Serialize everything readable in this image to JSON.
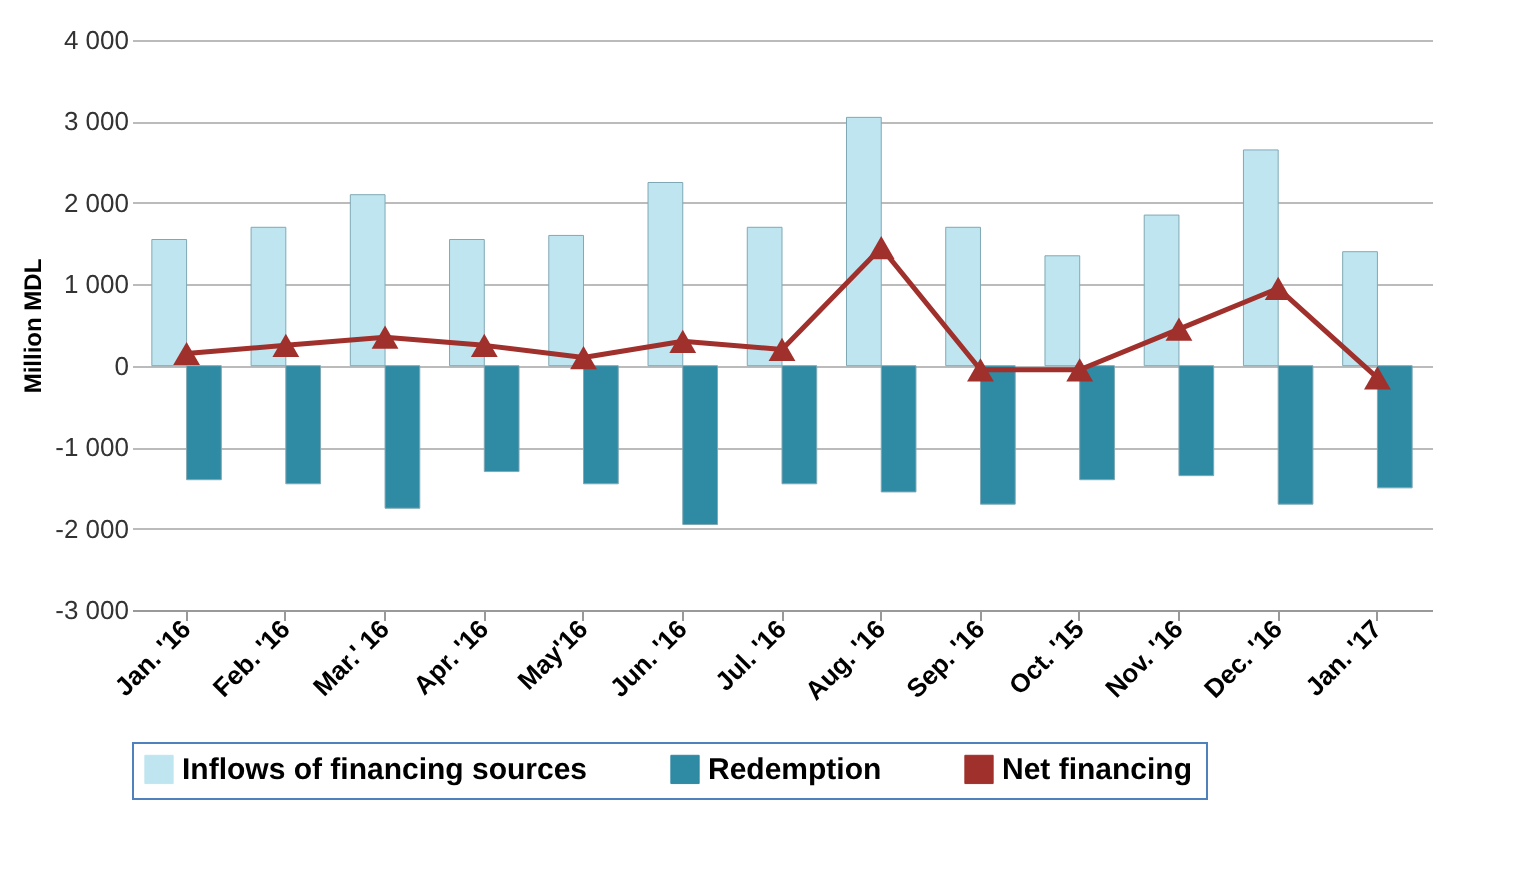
{
  "chart_data": {
    "type": "bar",
    "ylabel": "Million MDL",
    "categories": [
      "Jan. '16",
      "Feb. '16",
      "Mar.' 16",
      "Apr. '16",
      "May'16",
      "Jun. '16",
      "Jul. '16",
      "Aug. '16",
      "Sep. '16",
      "Oct. '15",
      "Nov. '16",
      "Dec. '16",
      "Jan. '17"
    ],
    "series": [
      {
        "name": "Inflows of financing sources",
        "color": "#bfe6f0",
        "values": [
          1550,
          1700,
          2100,
          1550,
          1600,
          2250,
          1700,
          3050,
          1700,
          1350,
          1850,
          2650,
          1400
        ]
      },
      {
        "name": "Redemption",
        "color": "#2f8aa3",
        "values": [
          -1400,
          -1450,
          -1750,
          -1300,
          -1450,
          -1950,
          -1450,
          -1550,
          -1700,
          -1400,
          -1350,
          -1700,
          -1500
        ]
      },
      {
        "name": "Net financing",
        "type": "line",
        "color": "#a0302c",
        "marker": "triangle",
        "values": [
          150,
          250,
          350,
          250,
          100,
          300,
          200,
          1450,
          -50,
          -50,
          450,
          950,
          -150
        ]
      }
    ],
    "ylim": [
      -3000,
      4000
    ],
    "yticks": [
      {
        "value": -3000,
        "label": "-3 000"
      },
      {
        "value": -2000,
        "label": "-2 000"
      },
      {
        "value": -1000,
        "label": "-1 000"
      },
      0,
      {
        "value": 1000,
        "label": "1 000"
      },
      {
        "value": 2000,
        "label": "2 000"
      },
      {
        "value": 3000,
        "label": "3 000"
      },
      {
        "value": 4000,
        "label": "4 000"
      }
    ],
    "grid": "y",
    "legend": "bottom"
  }
}
